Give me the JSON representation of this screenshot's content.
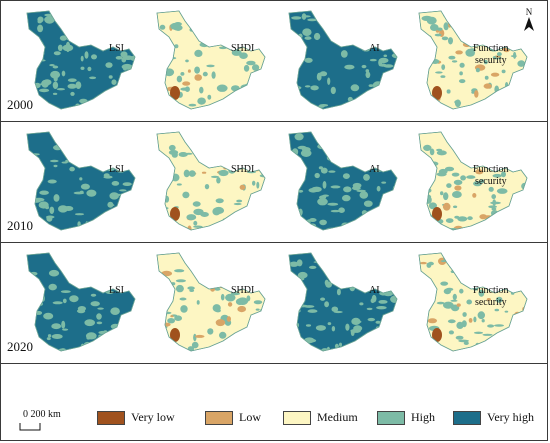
{
  "years": [
    {
      "year": "2000",
      "panels": [
        "LSI",
        "SHDI",
        "AI",
        "Function\nsecurity"
      ]
    },
    {
      "year": "2010",
      "panels": [
        "LSI",
        "SHDI",
        "AI",
        "Function\nsecurity"
      ]
    },
    {
      "year": "2020",
      "panels": [
        "LSI",
        "SHDI",
        "AI",
        "Function\nsecurity"
      ]
    }
  ],
  "panel_labels": {
    "lsi": "LSI",
    "shdi": "SHDI",
    "ai": "AI",
    "fs_line1": "Function",
    "fs_line2": "security"
  },
  "north_label": "N",
  "scale_label": "0   200 km",
  "legend": [
    {
      "label": "Very low",
      "color": "#a0521e"
    },
    {
      "label": "Low",
      "color": "#d9a566"
    },
    {
      "label": "Medium",
      "color": "#fdf6c3"
    },
    {
      "label": "High",
      "color": "#7dbba6"
    },
    {
      "label": "Very high",
      "color": "#1d6e8a"
    }
  ]
}
